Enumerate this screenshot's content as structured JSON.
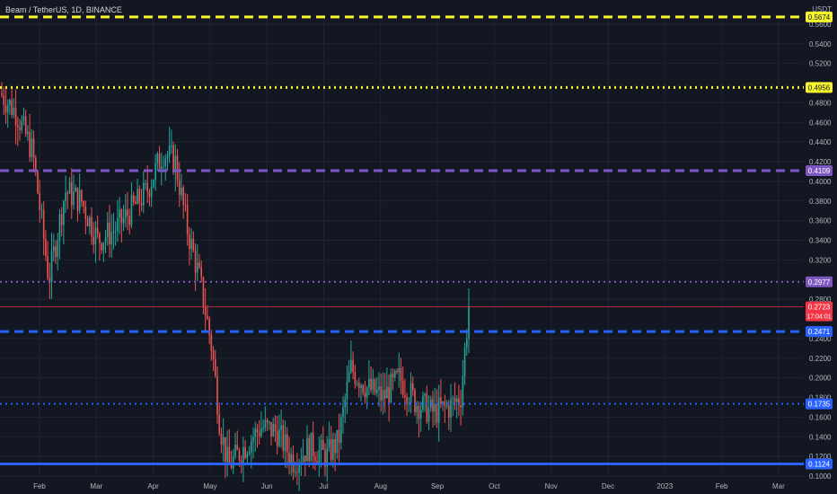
{
  "header": {
    "symbol": "Beam / TetherUS, 1D, BINANCE",
    "currency": "USDT"
  },
  "colors": {
    "background": "#131722",
    "grid": "#1f2433",
    "axis_text": "#b2b5be",
    "up": "#26a69a",
    "down": "#ef5350"
  },
  "chart_data": {
    "type": "candlestick",
    "title": "Beam / TetherUS, 1D, BINANCE",
    "y_axis_label": "USDT",
    "ylim": [
      0.1,
      0.57
    ],
    "y_ticks": [
      "0.1000",
      "0.1200",
      "0.1400",
      "0.1600",
      "0.1800",
      "0.2000",
      "0.2200",
      "0.2400",
      "0.2800",
      "0.3200",
      "0.3400",
      "0.3600",
      "0.3800",
      "0.4000",
      "0.4200",
      "0.4400",
      "0.4600",
      "0.4800",
      "0.5200",
      "0.5400",
      "0.5600"
    ],
    "x_ticks": [
      "Feb",
      "Mar",
      "Apr",
      "May",
      "Jun",
      "Jul",
      "Aug",
      "Sep",
      "Oct",
      "Nov",
      "Dec",
      "2023",
      "Feb",
      "Mar"
    ],
    "levels": [
      {
        "value": 0.5674,
        "label": "0.5674",
        "color": "#f7f52b",
        "style": "dashed",
        "width": 3
      },
      {
        "value": 0.4956,
        "label": "0.4956",
        "color": "#f7f52b",
        "style": "dotted",
        "width": 3
      },
      {
        "value": 0.4109,
        "label": "0.4109",
        "color": "#7e57c2",
        "style": "dashed",
        "width": 3
      },
      {
        "value": 0.2977,
        "label": "0.2977",
        "color": "#7e57c2",
        "style": "dotted",
        "width": 2
      },
      {
        "value": 0.2471,
        "label": "0.2471",
        "color": "#2962ff",
        "style": "dashed",
        "width": 3
      },
      {
        "value": 0.1735,
        "label": "0.1735",
        "color": "#2962ff",
        "style": "dotted",
        "width": 2
      },
      {
        "value": 0.1124,
        "label": "0.1124",
        "color": "#2962ff",
        "style": "solid",
        "width": 3
      }
    ],
    "current_price": {
      "value": 0.2723,
      "label": "0.2723",
      "countdown": "17:04:01",
      "color": "#f23645"
    },
    "price_series": [
      {
        "x": 0,
        "close": 0.49
      },
      {
        "x": 0.02,
        "close": 0.47
      },
      {
        "x": 0.04,
        "close": 0.43
      },
      {
        "x": 0.06,
        "close": 0.3
      },
      {
        "x": 0.08,
        "close": 0.39
      },
      {
        "x": 0.1,
        "close": 0.38
      },
      {
        "x": 0.12,
        "close": 0.34
      },
      {
        "x": 0.14,
        "close": 0.35
      },
      {
        "x": 0.16,
        "close": 0.37
      },
      {
        "x": 0.18,
        "close": 0.39
      },
      {
        "x": 0.2,
        "close": 0.43
      },
      {
        "x": 0.215,
        "close": 0.42
      },
      {
        "x": 0.23,
        "close": 0.35
      },
      {
        "x": 0.245,
        "close": 0.3
      },
      {
        "x": 0.26,
        "close": 0.23
      },
      {
        "x": 0.27,
        "close": 0.15
      },
      {
        "x": 0.28,
        "close": 0.11
      },
      {
        "x": 0.3,
        "close": 0.13
      },
      {
        "x": 0.32,
        "close": 0.15
      },
      {
        "x": 0.34,
        "close": 0.145
      },
      {
        "x": 0.36,
        "close": 0.115
      },
      {
        "x": 0.38,
        "close": 0.13
      },
      {
        "x": 0.4,
        "close": 0.12
      },
      {
        "x": 0.415,
        "close": 0.135
      },
      {
        "x": 0.43,
        "close": 0.21
      },
      {
        "x": 0.45,
        "close": 0.19
      },
      {
        "x": 0.47,
        "close": 0.18
      },
      {
        "x": 0.49,
        "close": 0.2
      },
      {
        "x": 0.51,
        "close": 0.175
      },
      {
        "x": 0.53,
        "close": 0.165
      },
      {
        "x": 0.55,
        "close": 0.17
      },
      {
        "x": 0.565,
        "close": 0.18
      },
      {
        "x": 0.575,
        "close": 0.2723
      }
    ]
  }
}
